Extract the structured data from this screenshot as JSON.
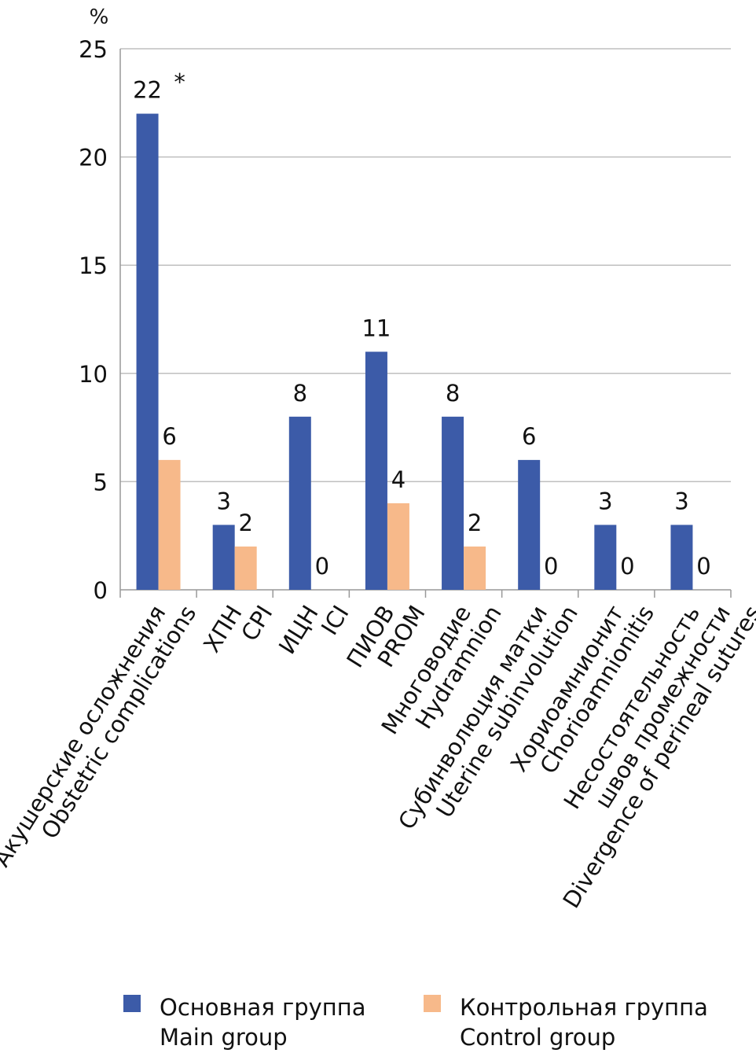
{
  "chart_data": {
    "type": "bar",
    "ylabel": "%",
    "ylim": [
      0,
      25
    ],
    "yticks": [
      0,
      5,
      10,
      15,
      20,
      25
    ],
    "grid": true,
    "categories": [
      [
        "Акушерские осложнения",
        "Obstetric complications"
      ],
      [
        "ХПН",
        "CPI"
      ],
      [
        "ИЦН",
        "ICI"
      ],
      [
        "ПИОВ",
        "PROM"
      ],
      [
        "Многоводие",
        "Hydramnion"
      ],
      [
        "Субинволюция матки",
        "Uterine subinvolution"
      ],
      [
        "Хориоамнионит",
        "Chorioamnionitis"
      ],
      [
        "Несостоятельность",
        "швов промежности",
        "Divergence of perineal sutures"
      ]
    ],
    "series": [
      {
        "name": "Основная группа / Main group",
        "color": "#3c5ba8",
        "values": [
          22,
          3,
          8,
          11,
          8,
          6,
          3,
          3
        ]
      },
      {
        "name": "Контрольная группа / Control group",
        "color": "#f7b98a",
        "values": [
          6,
          2,
          0,
          4,
          2,
          0,
          0,
          0
        ]
      }
    ],
    "annotations": [
      {
        "category_index": 0,
        "series_index": 0,
        "text": "*"
      }
    ],
    "legend_position": "bottom"
  },
  "legend": {
    "main_ru": "Основная группа",
    "main_en": "Main group",
    "control_ru": "Контрольная группа",
    "control_en": "Control group",
    "main_color": "#3c5ba8",
    "control_color": "#f7b98a"
  }
}
